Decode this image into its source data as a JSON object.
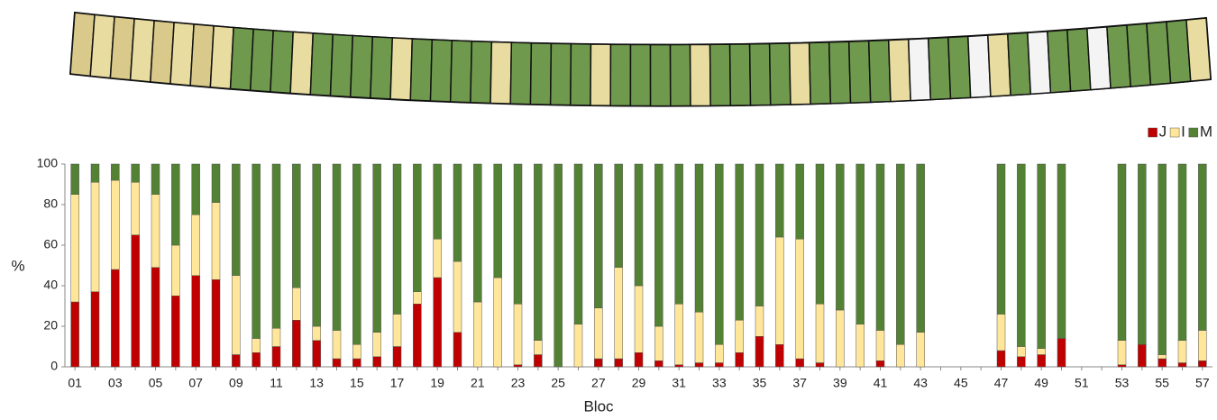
{
  "chart_data": {
    "type": "stacked_bar",
    "xlabel": "Bloc",
    "ylabel": "%",
    "categories": [
      "01",
      null,
      "03",
      null,
      "05",
      null,
      "07",
      null,
      "09",
      null,
      "11",
      null,
      "13",
      null,
      "15",
      null,
      "17",
      null,
      "19",
      null,
      "21",
      null,
      "23",
      null,
      "25",
      null,
      "27",
      null,
      "29",
      null,
      "31",
      null,
      "33",
      null,
      "35",
      null,
      "37",
      null,
      "39",
      null,
      "41",
      null,
      "43",
      null,
      "45",
      null,
      "47",
      null,
      "49",
      null,
      "51",
      null,
      "53",
      null,
      "55",
      null,
      "57"
    ],
    "series": [
      {
        "name": "J",
        "color": "#c00000",
        "values": [
          32,
          37,
          48,
          65,
          49,
          35,
          45,
          43,
          6,
          7,
          10,
          23,
          13,
          4,
          4,
          5,
          10,
          31,
          44,
          17,
          0,
          0,
          1,
          6,
          0,
          0,
          4,
          4,
          7,
          3,
          1,
          2,
          2,
          7,
          15,
          11,
          4,
          2,
          0,
          0,
          3,
          0,
          0,
          null,
          null,
          null,
          8,
          5,
          6,
          14,
          null,
          null,
          1,
          11,
          4,
          2,
          3
        ]
      },
      {
        "name": "I",
        "color": "#ffe699",
        "values": [
          53,
          54,
          44,
          26,
          36,
          25,
          30,
          38,
          39,
          7,
          9,
          16,
          7,
          14,
          7,
          12,
          16,
          6,
          19,
          35,
          32,
          44,
          30,
          7,
          0,
          21,
          25,
          45,
          33,
          17,
          30,
          25,
          9,
          16,
          15,
          53,
          59,
          29,
          28,
          21,
          15,
          11,
          17,
          null,
          null,
          null,
          18,
          5,
          3,
          0,
          null,
          null,
          12,
          0,
          2,
          11,
          15
        ]
      },
      {
        "name": "M",
        "color": "#548235",
        "values": [
          15,
          9,
          8,
          9,
          15,
          40,
          25,
          19,
          55,
          86,
          81,
          61,
          80,
          82,
          89,
          83,
          74,
          63,
          37,
          48,
          68,
          56,
          69,
          87,
          100,
          79,
          71,
          51,
          60,
          80,
          69,
          73,
          89,
          77,
          70,
          36,
          37,
          69,
          72,
          79,
          82,
          89,
          83,
          null,
          null,
          null,
          74,
          90,
          91,
          86,
          null,
          null,
          87,
          89,
          94,
          87,
          82
        ]
      }
    ],
    "ylim": [
      0,
      100
    ],
    "yticks": [
      0,
      20,
      40,
      60,
      80,
      100
    ],
    "grid": false,
    "legend": "top-right"
  }
}
